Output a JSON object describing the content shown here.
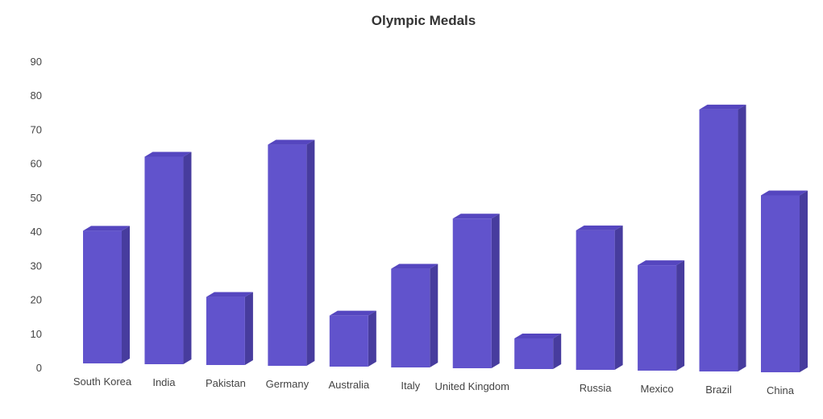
{
  "chart_data": {
    "type": "bar",
    "title": "Olympic Medals",
    "categories": [
      "South Korea",
      "India",
      "Pakistan",
      "Germany",
      "Australia",
      "Italy",
      "United Kingdom",
      "",
      "Russia",
      "Mexico",
      "Brazil",
      "China"
    ],
    "values": [
      39,
      61,
      20,
      65,
      15,
      29,
      44,
      9,
      41,
      31,
      77,
      52
    ],
    "xlabel": "",
    "ylabel": "",
    "yticks": [
      0,
      10,
      20,
      30,
      40,
      50,
      60,
      70,
      80,
      90
    ],
    "ylim": [
      0,
      90
    ],
    "grid": false,
    "bar_style": "3d",
    "colors": {
      "bar_front": "#6153cc",
      "bar_side": "#473c9e",
      "bar_top": "#5546bf",
      "text": "#444444",
      "title": "#333333"
    }
  }
}
